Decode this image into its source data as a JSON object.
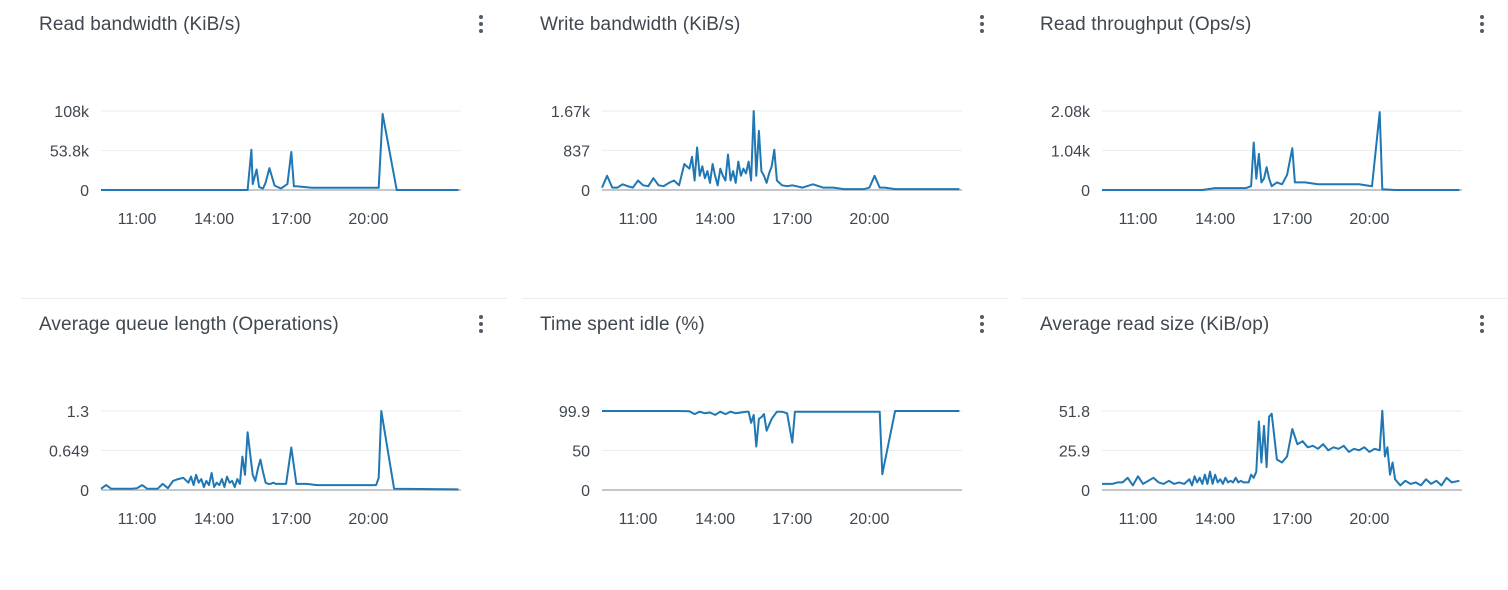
{
  "colors": {
    "line": "#1f77b4",
    "grid": "#eaeded",
    "baseline": "#c6c6cd",
    "text": "#414750"
  },
  "menu_icon": "vertical-ellipsis-icon",
  "chart_data": [
    {
      "type": "line",
      "title": "Read bandwidth (KiB/s)",
      "ylim": [
        0,
        108
      ],
      "yticks": [
        0,
        53.8,
        108
      ],
      "ytick_labels": [
        "0",
        "53.8k",
        "108k"
      ],
      "xlim": [
        9.6,
        23.6
      ],
      "xticks": [
        "11:00",
        "14:00",
        "17:00",
        "20:00"
      ],
      "series": [
        {
          "x": [
            9.6,
            15.3,
            15.45,
            15.5,
            15.65,
            15.75,
            15.9,
            16.0,
            16.15,
            16.35,
            16.6,
            16.85,
            17.0,
            17.1,
            17.2,
            17.8,
            20.2,
            20.4,
            20.55,
            21.1,
            22.0,
            23.5
          ],
          "y": [
            0,
            0,
            55,
            8,
            28,
            4,
            2,
            10,
            30,
            6,
            2,
            8,
            52,
            5,
            5,
            3,
            3,
            3,
            104,
            0,
            0,
            0
          ]
        }
      ]
    },
    {
      "type": "line",
      "title": "Write bandwidth (KiB/s)",
      "ylim": [
        0,
        1.67
      ],
      "yticks": [
        0,
        0.837,
        1.67
      ],
      "ytick_labels": [
        "0",
        "837",
        "1.67k"
      ],
      "xlim": [
        9.6,
        23.6
      ],
      "xticks": [
        "11:00",
        "14:00",
        "17:00",
        "20:00"
      ],
      "series": [
        {
          "x": [
            9.6,
            9.8,
            10.0,
            10.2,
            10.4,
            10.6,
            10.8,
            11.0,
            11.2,
            11.4,
            11.6,
            11.8,
            12.0,
            12.2,
            12.4,
            12.6,
            12.8,
            13.0,
            13.1,
            13.2,
            13.3,
            13.4,
            13.5,
            13.6,
            13.7,
            13.8,
            13.9,
            14.0,
            14.1,
            14.2,
            14.3,
            14.4,
            14.5,
            14.6,
            14.7,
            14.8,
            14.9,
            15.0,
            15.1,
            15.2,
            15.3,
            15.4,
            15.5,
            15.6,
            15.7,
            15.8,
            15.9,
            16.0,
            16.1,
            16.2,
            16.3,
            16.4,
            16.6,
            16.8,
            17.0,
            17.4,
            17.8,
            18.2,
            18.6,
            19.0,
            19.4,
            19.8,
            20.0,
            20.2,
            20.4,
            20.6,
            21.0,
            23.5
          ],
          "y": [
            0.05,
            0.3,
            0.05,
            0.05,
            0.12,
            0.08,
            0.05,
            0.2,
            0.1,
            0.08,
            0.25,
            0.1,
            0.08,
            0.15,
            0.2,
            0.1,
            0.55,
            0.45,
            0.7,
            0.2,
            0.9,
            0.3,
            0.5,
            0.25,
            0.4,
            0.15,
            0.55,
            0.3,
            0.1,
            0.45,
            0.3,
            0.2,
            0.75,
            0.2,
            0.4,
            0.15,
            0.6,
            0.3,
            0.45,
            0.35,
            0.6,
            0.2,
            1.67,
            0.3,
            1.25,
            0.4,
            0.3,
            0.15,
            0.35,
            0.5,
            0.85,
            0.2,
            0.1,
            0.08,
            0.1,
            0.05,
            0.12,
            0.05,
            0.05,
            0.02,
            0.02,
            0.02,
            0.05,
            0.3,
            0.05,
            0.05,
            0.02,
            0.02
          ]
        }
      ]
    },
    {
      "type": "line",
      "title": "Read throughput (Ops/s)",
      "ylim": [
        0,
        2.08
      ],
      "yticks": [
        0,
        1.04,
        2.08
      ],
      "ytick_labels": [
        "0",
        "1.04k",
        "2.08k"
      ],
      "xlim": [
        9.6,
        23.6
      ],
      "xticks": [
        "11:00",
        "14:00",
        "17:00",
        "20:00"
      ],
      "series": [
        {
          "x": [
            9.6,
            10.5,
            11.5,
            12.5,
            13.0,
            13.5,
            14.0,
            14.5,
            15.0,
            15.2,
            15.4,
            15.5,
            15.6,
            15.7,
            15.8,
            15.9,
            16.0,
            16.1,
            16.2,
            16.4,
            16.6,
            16.8,
            17.0,
            17.1,
            17.2,
            17.5,
            18.0,
            19.0,
            19.6,
            20.1,
            20.4,
            20.5,
            21.0,
            22.0,
            23.5
          ],
          "y": [
            0,
            0,
            0,
            0,
            0,
            0,
            0.05,
            0.05,
            0.05,
            0.05,
            0.1,
            1.25,
            0.3,
            0.95,
            0.2,
            0.3,
            0.6,
            0.3,
            0.1,
            0.2,
            0.15,
            0.4,
            1.1,
            0.2,
            0.2,
            0.2,
            0.15,
            0.15,
            0.15,
            0.1,
            2.05,
            0.02,
            0,
            0,
            0
          ]
        }
      ]
    },
    {
      "type": "line",
      "title": "Average queue length (Operations)",
      "ylim": [
        0,
        1.3
      ],
      "yticks": [
        0,
        0.649,
        1.3
      ],
      "ytick_labels": [
        "0",
        "0.649",
        "1.3"
      ],
      "xlim": [
        9.6,
        23.6
      ],
      "xticks": [
        "11:00",
        "14:00",
        "17:00",
        "20:00"
      ],
      "series": [
        {
          "x": [
            9.6,
            9.8,
            10.0,
            10.2,
            10.4,
            10.6,
            10.8,
            11.0,
            11.2,
            11.4,
            11.6,
            11.8,
            12.0,
            12.2,
            12.4,
            12.6,
            12.8,
            13.0,
            13.1,
            13.2,
            13.3,
            13.4,
            13.5,
            13.6,
            13.7,
            13.8,
            13.9,
            14.0,
            14.1,
            14.2,
            14.3,
            14.4,
            14.5,
            14.6,
            14.7,
            14.8,
            14.9,
            15.0,
            15.1,
            15.2,
            15.3,
            15.4,
            15.5,
            15.6,
            15.7,
            15.8,
            15.9,
            16.0,
            16.1,
            16.2,
            16.3,
            16.4,
            16.6,
            16.8,
            17.0,
            17.2,
            17.6,
            18.0,
            18.5,
            19.0,
            19.5,
            20.0,
            20.3,
            20.4,
            20.5,
            21.0,
            23.5
          ],
          "y": [
            0.02,
            0.08,
            0.02,
            0.02,
            0.02,
            0.02,
            0.02,
            0.03,
            0.08,
            0.02,
            0.02,
            0.02,
            0.1,
            0.03,
            0.15,
            0.18,
            0.2,
            0.12,
            0.22,
            0.08,
            0.25,
            0.12,
            0.18,
            0.05,
            0.15,
            0.08,
            0.28,
            0.05,
            0.12,
            0.08,
            0.18,
            0.05,
            0.22,
            0.12,
            0.15,
            0.05,
            0.18,
            0.1,
            0.55,
            0.25,
            0.95,
            0.6,
            0.25,
            0.15,
            0.35,
            0.5,
            0.3,
            0.12,
            0.1,
            0.1,
            0.12,
            0.1,
            0.1,
            0.1,
            0.7,
            0.1,
            0.1,
            0.08,
            0.08,
            0.08,
            0.08,
            0.08,
            0.08,
            0.2,
            1.3,
            0.02,
            0.01
          ]
        }
      ]
    },
    {
      "type": "line",
      "title": "Time spent idle (%)",
      "ylim": [
        0,
        99.9
      ],
      "yticks": [
        0,
        50,
        99.9
      ],
      "ytick_labels": [
        "0",
        "50",
        "99.9"
      ],
      "xlim": [
        9.6,
        23.6
      ],
      "xticks": [
        "11:00",
        "14:00",
        "17:00",
        "20:00"
      ],
      "series": [
        {
          "x": [
            9.6,
            11.0,
            12.0,
            12.5,
            13.0,
            13.2,
            13.4,
            13.6,
            13.8,
            14.0,
            14.2,
            14.4,
            14.6,
            14.8,
            15.0,
            15.2,
            15.3,
            15.4,
            15.5,
            15.6,
            15.7,
            15.8,
            15.9,
            16.0,
            16.2,
            16.4,
            16.6,
            16.8,
            17.0,
            17.1,
            17.2,
            18.0,
            19.0,
            20.0,
            20.2,
            20.4,
            20.5,
            21.0,
            23.5
          ],
          "y": [
            99.9,
            99.9,
            99.9,
            99.9,
            99.5,
            96,
            99,
            97,
            98,
            95,
            99,
            96,
            99,
            97,
            98,
            99,
            99,
            85,
            95,
            55,
            90,
            92,
            96,
            75,
            90,
            99,
            99,
            97,
            60,
            99,
            99,
            99,
            99,
            99,
            99,
            99,
            20,
            99.9,
            99.9
          ]
        }
      ]
    },
    {
      "type": "line",
      "title": "Average read size (KiB/op)",
      "ylim": [
        0,
        51.8
      ],
      "yticks": [
        0,
        25.9,
        51.8
      ],
      "ytick_labels": [
        "0",
        "25.9",
        "51.8"
      ],
      "xlim": [
        9.6,
        23.6
      ],
      "xticks": [
        "11:00",
        "14:00",
        "17:00",
        "20:00"
      ],
      "series": [
        {
          "x": [
            9.6,
            9.8,
            10.0,
            10.2,
            10.4,
            10.6,
            10.8,
            11.0,
            11.2,
            11.4,
            11.6,
            11.8,
            12.0,
            12.2,
            12.4,
            12.6,
            12.8,
            13.0,
            13.1,
            13.2,
            13.3,
            13.4,
            13.5,
            13.6,
            13.7,
            13.8,
            13.9,
            14.0,
            14.1,
            14.2,
            14.3,
            14.4,
            14.5,
            14.6,
            14.7,
            14.8,
            14.9,
            15.0,
            15.1,
            15.2,
            15.3,
            15.4,
            15.5,
            15.6,
            15.7,
            15.8,
            15.9,
            16.0,
            16.1,
            16.2,
            16.4,
            16.6,
            16.8,
            17.0,
            17.2,
            17.4,
            17.6,
            17.8,
            18.0,
            18.2,
            18.4,
            18.6,
            18.8,
            19.0,
            19.2,
            19.4,
            19.6,
            19.8,
            20.0,
            20.2,
            20.4,
            20.5,
            20.6,
            20.7,
            20.8,
            20.9,
            21.0,
            21.2,
            21.4,
            21.6,
            21.8,
            22.0,
            22.2,
            22.4,
            22.6,
            22.8,
            23.0,
            23.2,
            23.5
          ],
          "y": [
            4,
            4,
            4,
            5,
            5,
            8,
            3,
            9,
            4,
            6,
            8,
            5,
            4,
            6,
            4,
            5,
            4,
            7,
            3,
            9,
            5,
            8,
            4,
            10,
            4,
            12,
            4,
            10,
            5,
            7,
            4,
            8,
            5,
            6,
            5,
            8,
            5,
            6,
            5,
            5,
            5,
            10,
            8,
            12,
            45,
            18,
            42,
            15,
            48,
            50,
            20,
            18,
            22,
            40,
            30,
            32,
            28,
            29,
            27,
            30,
            26,
            28,
            27,
            29,
            25,
            27,
            26,
            28,
            25,
            27,
            26,
            52,
            22,
            28,
            10,
            18,
            7,
            3,
            6,
            4,
            5,
            3,
            7,
            4,
            6,
            3,
            8,
            5,
            6
          ]
        }
      ]
    }
  ]
}
